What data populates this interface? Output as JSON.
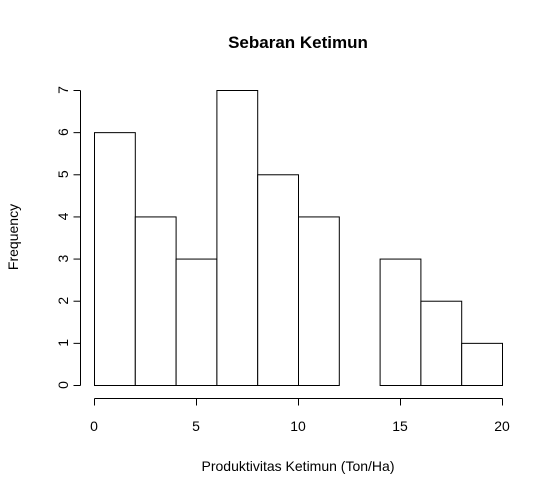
{
  "chart_data": {
    "type": "bar",
    "title": "Sebaran Ketimun",
    "xlabel": "Produktivitas Ketimun (Ton/Ha)",
    "ylabel": "Frequency",
    "bins": [
      {
        "start": 0,
        "end": 2,
        "count": 6
      },
      {
        "start": 2,
        "end": 4,
        "count": 4
      },
      {
        "start": 4,
        "end": 6,
        "count": 3
      },
      {
        "start": 6,
        "end": 8,
        "count": 7
      },
      {
        "start": 8,
        "end": 10,
        "count": 5
      },
      {
        "start": 10,
        "end": 12,
        "count": 4
      },
      {
        "start": 12,
        "end": 14,
        "count": 0
      },
      {
        "start": 14,
        "end": 16,
        "count": 3
      },
      {
        "start": 16,
        "end": 18,
        "count": 2
      },
      {
        "start": 18,
        "end": 20,
        "count": 1
      }
    ],
    "xlim": [
      0,
      20
    ],
    "ylim": [
      0,
      7
    ],
    "xticks": [
      0,
      5,
      10,
      15,
      20
    ],
    "yticks": [
      0,
      1,
      2,
      3,
      4,
      5,
      6,
      7
    ],
    "grid": false,
    "legend": "none"
  }
}
